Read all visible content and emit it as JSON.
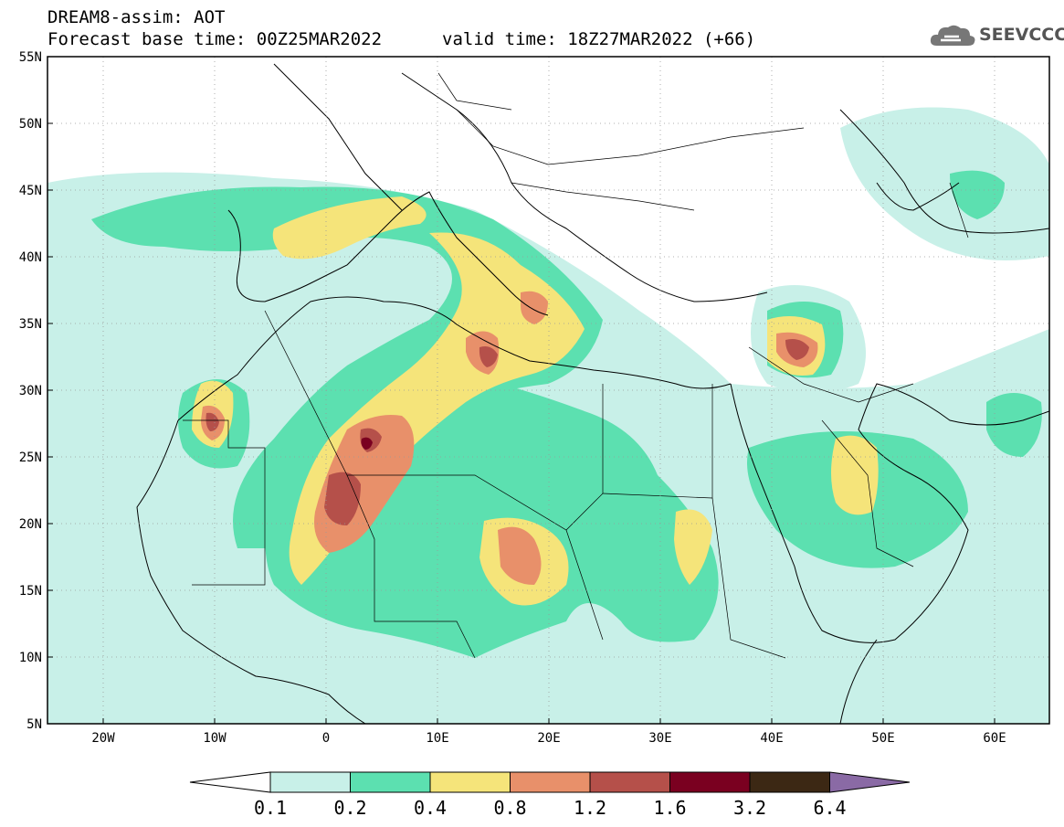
{
  "header": {
    "title": "DREAM8-assim: AOT",
    "base_time": "Forecast base time: 00Z25MAR2022",
    "valid_time": "valid time: 18Z27MAR2022 (+66)"
  },
  "logo": {
    "text": "SEEVCCC",
    "icon": "cloud-icon"
  },
  "axes": {
    "lon_labels": [
      "20W",
      "10W",
      "0",
      "10E",
      "20E",
      "30E",
      "40E",
      "50E",
      "60E"
    ],
    "lat_labels": [
      "55N",
      "50N",
      "45N",
      "40N",
      "35N",
      "30N",
      "25N",
      "20N",
      "15N",
      "10N",
      "5N"
    ]
  },
  "map_extent": {
    "lon_min": -25,
    "lon_max": 65,
    "lat_min": 5,
    "lat_max": 55
  },
  "colorbar": {
    "labels": [
      "0.1",
      "0.2",
      "0.4",
      "0.8",
      "1.2",
      "1.6",
      "3.2",
      "6.4"
    ],
    "colors": [
      "#ffffff",
      "#c8f0e8",
      "#5ce0b0",
      "#f5e47a",
      "#e8906a",
      "#b5504a",
      "#7a0020",
      "#3c2814",
      "#8a6aa5"
    ]
  }
}
